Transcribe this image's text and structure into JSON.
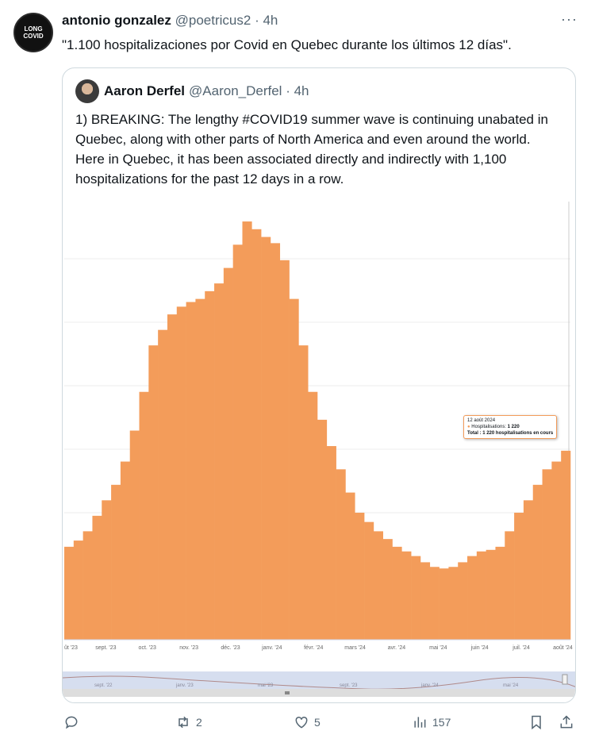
{
  "tweet": {
    "author": "antonio gonzalez",
    "handle": "@poetricus2",
    "time": "· 4h",
    "avatar_text": "LONG COVID",
    "more": "···",
    "text": "\"1.100 hospitalizaciones por Covid en Quebec durante los últimos 12 días\"."
  },
  "quote": {
    "author": "Aaron Derfel",
    "handle": "@Aaron_Derfel",
    "time": "· 4h",
    "text": "1) BREAKING: The lengthy #COVID19 summer wave is continuing unabated in Quebec, along with other parts of North America and even around the world. Here in Quebec, it has been associated directly and indirectly with 1,100 hospitalizations for the past 12 days in a row."
  },
  "chart_data": {
    "type": "bar",
    "title": "",
    "xlabel": "",
    "ylabel": "Hospitalisations",
    "ylim": [
      0,
      2800
    ],
    "grid": true,
    "x_ticks": [
      "ût '23",
      "sept. '23",
      "oct. '23",
      "nov. '23",
      "déc. '23",
      "janv. '24",
      "févr. '24",
      "mars '24",
      "avr. '24",
      "mai '24",
      "juin '24",
      "juil. '24",
      "août '24"
    ],
    "navigator_ticks": [
      "sept. '22",
      "janv. '23",
      "mai '23",
      "sept. '23",
      "janv. '24",
      "mai '24"
    ],
    "values": [
      600,
      640,
      700,
      800,
      900,
      1000,
      1150,
      1350,
      1600,
      1900,
      2000,
      2100,
      2150,
      2180,
      2200,
      2250,
      2300,
      2400,
      2550,
      2700,
      2650,
      2600,
      2560,
      2450,
      2200,
      1900,
      1600,
      1420,
      1250,
      1100,
      950,
      820,
      760,
      700,
      650,
      600,
      570,
      540,
      500,
      470,
      460,
      470,
      500,
      540,
      570,
      580,
      600,
      700,
      820,
      900,
      1000,
      1100,
      1150,
      1220
    ],
    "bar_color": "#f39c5a",
    "tooltip": {
      "date": "12 août 2024",
      "series": "Hospitalisations:",
      "value": "1 220",
      "total": "Total : 1 220 hospitalisations en cours"
    }
  },
  "actions": {
    "replies": "",
    "retweets": "2",
    "likes": "5",
    "views": "157"
  }
}
